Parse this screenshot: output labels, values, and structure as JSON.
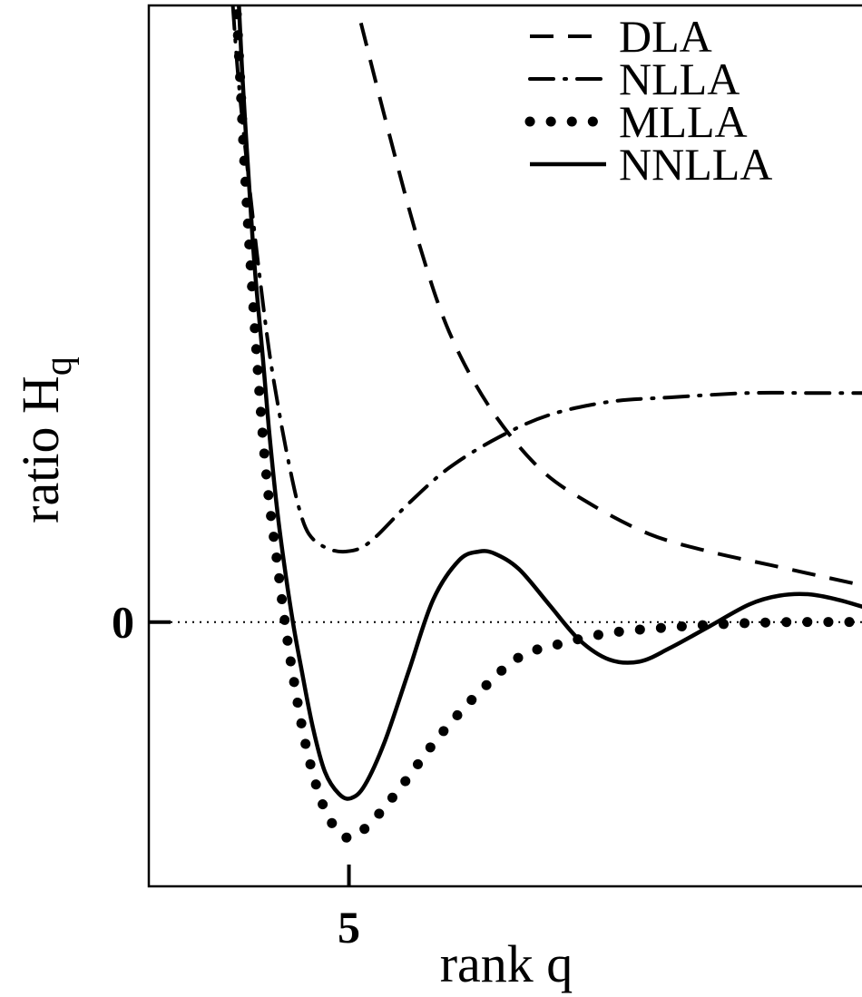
{
  "chart_data": {
    "type": "line",
    "title": "",
    "xlabel": "rank q",
    "ylabel_main": "ratio H",
    "ylabel_sub": "q",
    "xlim": [
      4.0,
      7.6
    ],
    "ylim": [
      -0.6,
      1.4
    ],
    "x_ticks": [
      {
        "value": 5,
        "label": "5"
      }
    ],
    "y_ticks": [
      {
        "value": 0,
        "label": "0"
      }
    ],
    "zero_line": "dotted",
    "legend_position": "top-right",
    "series": [
      {
        "name": "DLA",
        "style": "dashed",
        "points": [
          [
            5.06,
            1.36
          ],
          [
            5.2,
            1.11
          ],
          [
            5.35,
            0.86
          ],
          [
            5.5,
            0.66
          ],
          [
            5.7,
            0.49
          ],
          [
            5.95,
            0.35
          ],
          [
            6.2,
            0.27
          ],
          [
            6.5,
            0.2
          ],
          [
            6.8,
            0.16
          ],
          [
            7.1,
            0.13
          ],
          [
            7.4,
            0.1
          ],
          [
            7.6,
            0.08
          ]
        ]
      },
      {
        "name": "NLLA",
        "style": "dash-dot",
        "points": [
          [
            4.42,
            1.4
          ],
          [
            4.45,
            1.22
          ],
          [
            4.5,
            1.0
          ],
          [
            4.55,
            0.8
          ],
          [
            4.6,
            0.62
          ],
          [
            4.65,
            0.48
          ],
          [
            4.7,
            0.36
          ],
          [
            4.75,
            0.26
          ],
          [
            4.8,
            0.2
          ],
          [
            4.88,
            0.17
          ],
          [
            4.98,
            0.16
          ],
          [
            5.1,
            0.18
          ],
          [
            5.3,
            0.27
          ],
          [
            5.5,
            0.35
          ],
          [
            5.75,
            0.42
          ],
          [
            6.0,
            0.47
          ],
          [
            6.3,
            0.5
          ],
          [
            6.6,
            0.51
          ],
          [
            7.0,
            0.52
          ],
          [
            7.3,
            0.52
          ],
          [
            7.6,
            0.52
          ]
        ]
      },
      {
        "name": "MLLA",
        "style": "dotted",
        "points": [
          [
            4.44,
            1.38
          ],
          [
            4.46,
            1.2
          ],
          [
            4.48,
            1.02
          ],
          [
            4.51,
            0.8
          ],
          [
            4.54,
            0.6
          ],
          [
            4.57,
            0.42
          ],
          [
            4.6,
            0.28
          ],
          [
            4.64,
            0.14
          ],
          [
            4.68,
            0.0
          ],
          [
            4.72,
            -0.12
          ],
          [
            4.78,
            -0.27
          ],
          [
            4.85,
            -0.39
          ],
          [
            4.92,
            -0.46
          ],
          [
            5.0,
            -0.49
          ],
          [
            5.1,
            -0.46
          ],
          [
            5.25,
            -0.38
          ],
          [
            5.45,
            -0.26
          ],
          [
            5.65,
            -0.16
          ],
          [
            5.85,
            -0.08
          ],
          [
            6.05,
            -0.05
          ],
          [
            6.3,
            -0.025
          ],
          [
            6.6,
            -0.012
          ],
          [
            6.9,
            -0.004
          ],
          [
            7.2,
            0.0
          ],
          [
            7.6,
            0.0
          ]
        ]
      },
      {
        "name": "NNLLA",
        "style": "solid",
        "points": [
          [
            4.45,
            1.4
          ],
          [
            4.47,
            1.22
          ],
          [
            4.5,
            1.0
          ],
          [
            4.53,
            0.8
          ],
          [
            4.57,
            0.6
          ],
          [
            4.6,
            0.44
          ],
          [
            4.64,
            0.26
          ],
          [
            4.68,
            0.12
          ],
          [
            4.72,
            0.0
          ],
          [
            4.76,
            -0.1
          ],
          [
            4.82,
            -0.24
          ],
          [
            4.88,
            -0.34
          ],
          [
            4.95,
            -0.39
          ],
          [
            5.01,
            -0.4
          ],
          [
            5.08,
            -0.37
          ],
          [
            5.18,
            -0.27
          ],
          [
            5.3,
            -0.11
          ],
          [
            5.42,
            0.05
          ],
          [
            5.55,
            0.14
          ],
          [
            5.65,
            0.16
          ],
          [
            5.73,
            0.155
          ],
          [
            5.85,
            0.12
          ],
          [
            6.0,
            0.04
          ],
          [
            6.15,
            -0.04
          ],
          [
            6.3,
            -0.085
          ],
          [
            6.45,
            -0.09
          ],
          [
            6.6,
            -0.06
          ],
          [
            6.8,
            -0.01
          ],
          [
            7.0,
            0.04
          ],
          [
            7.15,
            0.06
          ],
          [
            7.3,
            0.063
          ],
          [
            7.45,
            0.05
          ],
          [
            7.6,
            0.03
          ]
        ]
      }
    ]
  },
  "colors": {
    "ink": "#000000",
    "background": "#ffffff"
  }
}
